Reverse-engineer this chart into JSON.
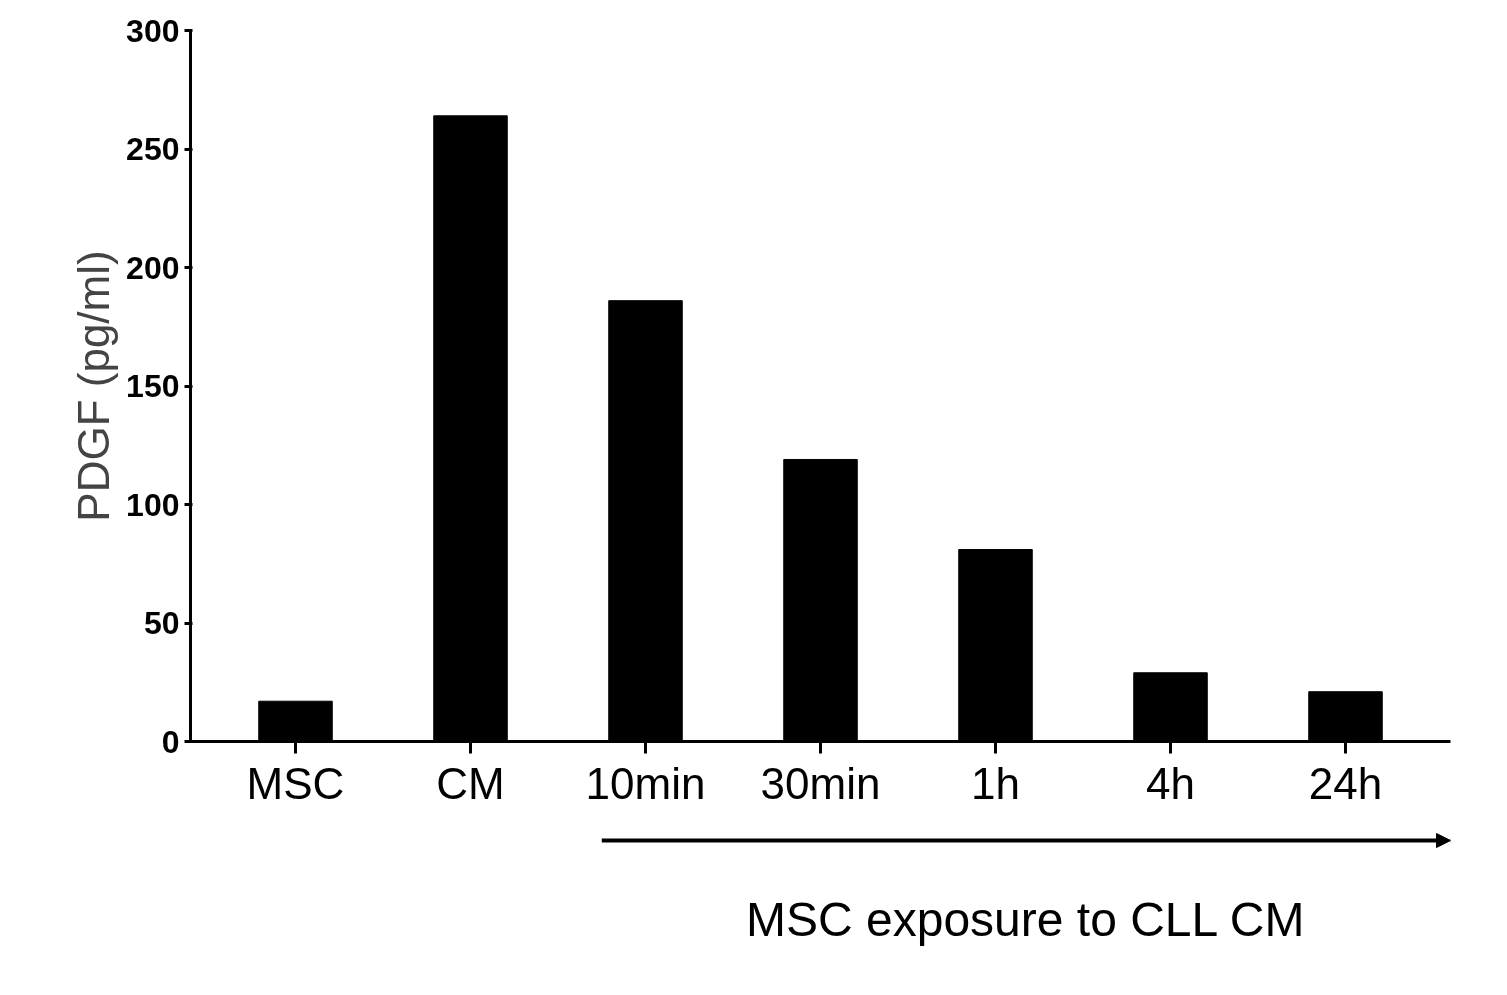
{
  "chart_data": {
    "type": "bar",
    "ylabel": "PDGF (pg/ml)",
    "categories": [
      "MSC",
      "CM",
      "10min",
      "30min",
      "1h",
      "4h",
      "24h"
    ],
    "values": [
      17,
      264,
      186,
      119,
      81,
      29,
      21
    ],
    "color": "#000000",
    "ylim": [
      0,
      300
    ],
    "yticks": [
      0,
      50,
      100,
      150,
      200,
      250,
      300
    ],
    "grid": false,
    "annotations": [
      "MSC exposure to CLL CM"
    ]
  }
}
